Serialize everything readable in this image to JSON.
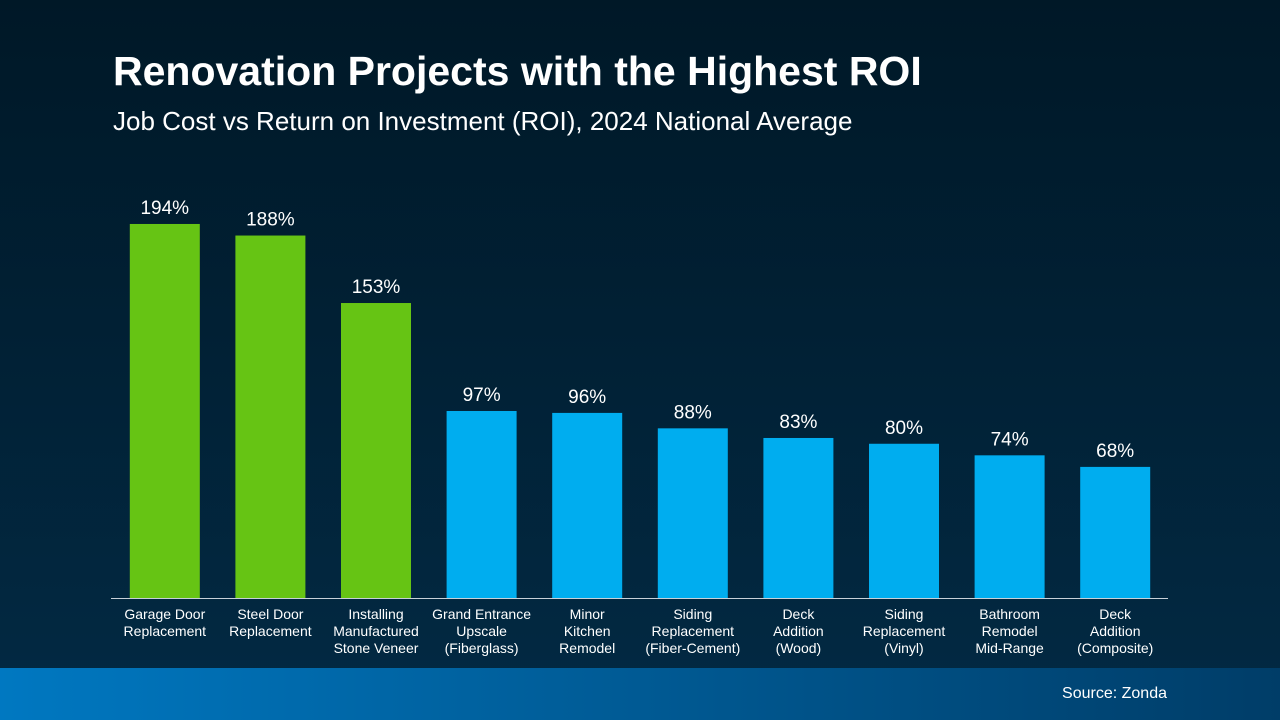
{
  "chart_data": {
    "type": "bar",
    "title": "Renovation Projects with the Highest ROI",
    "subtitle": "Job Cost vs Return on Investment (ROI), 2024 National Average",
    "categories": [
      "Garage Door\nReplacement",
      "Steel Door\nReplacement",
      "Installing\nManufactured\nStone Veneer",
      "Grand Entrance\nUpscale\n(Fiberglass)",
      "Minor\nKitchen\nRemodel",
      "Siding\nReplacement\n(Fiber-Cement)",
      "Deck\nAddition\n(Wood)",
      "Siding\nReplacement\n(Vinyl)",
      "Bathroom\nRemodel\nMid-Range",
      "Deck\nAddition\n(Composite)"
    ],
    "values": [
      194,
      188,
      153,
      97,
      96,
      88,
      83,
      80,
      74,
      68
    ],
    "value_labels": [
      "194%",
      "188%",
      "153%",
      "97%",
      "96%",
      "88%",
      "83%",
      "80%",
      "74%",
      "68%"
    ],
    "colors": [
      "#66c414",
      "#66c414",
      "#66c414",
      "#00adef",
      "#00adef",
      "#00adef",
      "#00adef",
      "#00adef",
      "#00adef",
      "#00adef"
    ],
    "source": "Source: Zonda"
  }
}
